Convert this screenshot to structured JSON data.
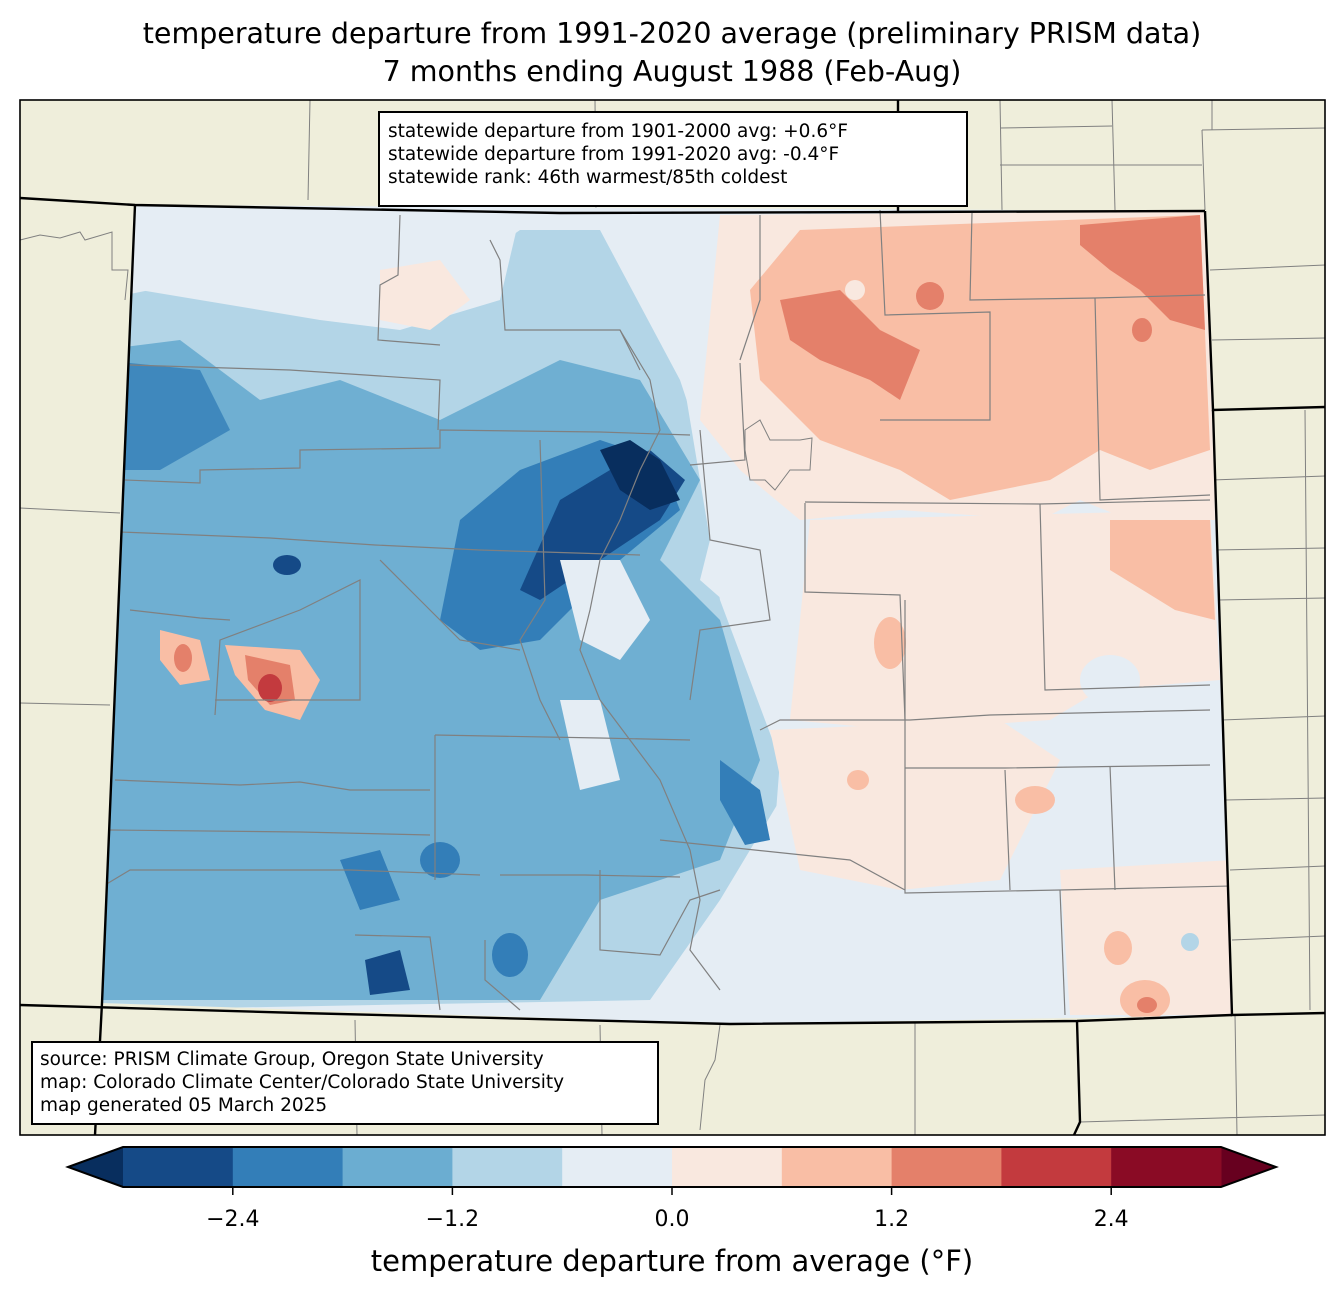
{
  "title": {
    "line1": "temperature departure from 1991-2020 average (preliminary PRISM data)",
    "line2": "7 months ending August 1988 (Feb-Aug)"
  },
  "stats_box": {
    "lines": [
      "statewide departure from 1901-2000 avg: +0.6°F",
      "statewide departure from 1991-2020 avg: -0.4°F",
      "statewide rank: 46th warmest/85th coldest"
    ]
  },
  "credits_box": {
    "lines": [
      "source: PRISM Climate Group, Oregon State University",
      "map: Colorado Climate Center/Colorado State University",
      "map generated 05 March 2025"
    ]
  },
  "chart_data": {
    "type": "heatmap",
    "title": "temperature departure from 1991-2020 average (preliminary PRISM data)",
    "subtitle": "7 months ending August 1988 (Feb-Aug)",
    "region": "Colorado",
    "variable": "temperature departure from average (°F)",
    "colorbar": {
      "label": "temperature departure from average (°F)",
      "levels": [
        -3.0,
        -2.4,
        -1.8,
        -1.2,
        -0.6,
        0.0,
        0.6,
        1.2,
        1.8,
        2.4,
        3.0
      ],
      "ticks": [
        "−2.4",
        "−1.2",
        "0.0",
        "1.2",
        "2.4"
      ],
      "tick_values": [
        -2.4,
        -1.2,
        0.0,
        1.2,
        2.4
      ],
      "colors": [
        "#154a87",
        "#337eb8",
        "#6badd1",
        "#b3d5e7",
        "#e5edf4",
        "#f9e8df",
        "#f9bea5",
        "#e4806a",
        "#c33a3e",
        "#8a0b25"
      ],
      "extend_low_color": "#082e5e",
      "extend_high_color": "#67001f",
      "extend": "both",
      "orientation": "horizontal"
    },
    "pattern_summary": {
      "west_mountains": "below average (-0.6 to -3.0 °F), darkest in central mountains",
      "northeast_plains": "above average (+0.6 to +1.8 °F)",
      "southeast_plains": "near average (-0.6 to +0.6 °F)",
      "west_central_hotspot": "+1.8 to +3.0 °F"
    },
    "statewide_departure_1901_2000": 0.6,
    "statewide_departure_1991_2020": -0.4,
    "rank_warmest": 46,
    "rank_coldest": 85
  },
  "colors": {
    "land_background": "#efeedb",
    "county_line": "#808080",
    "state_line": "#000000"
  }
}
